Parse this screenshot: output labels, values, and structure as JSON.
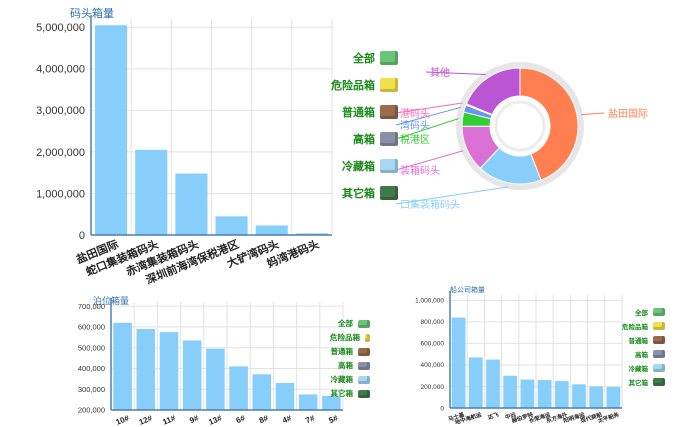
{
  "colors": {
    "bar": "#87cefa",
    "axis": "#4a7fb0",
    "grid": "#e2e2e2",
    "title": "#2f6fb0",
    "legend_text": "#1a8a1a"
  },
  "legend_items": [
    {
      "label": "全部",
      "icon": "all-containers-icon",
      "color": "#6cc47a"
    },
    {
      "label": "危险品箱",
      "icon": "hazardous-container-icon",
      "color": "#f0e04a"
    },
    {
      "label": "普通箱",
      "icon": "standard-container-icon",
      "color": "#9b6b4e"
    },
    {
      "label": "高箱",
      "icon": "high-cube-container-icon",
      "color": "#8a8fa8"
    },
    {
      "label": "冷藏箱",
      "icon": "reefer-container-icon",
      "color": "#a8d8f0"
    },
    {
      "label": "其它箱",
      "icon": "other-container-icon",
      "color": "#3f7a4a"
    }
  ],
  "chart_data": [
    {
      "type": "bar",
      "title": "码头箱量",
      "categories": [
        "盐田国际",
        "蛇口集装箱码头",
        "赤湾集装箱码头",
        "深圳前海湾保税港区",
        "大铲湾码头",
        "妈湾港码头"
      ],
      "values": [
        5050000,
        2050000,
        1480000,
        450000,
        230000,
        40000
      ],
      "ylim": [
        0,
        5200000
      ],
      "yticks": [
        0,
        1000000,
        2000000,
        3000000,
        4000000,
        5000000
      ],
      "ytick_labels": [
        "0",
        "1,000,000",
        "2,000,000",
        "3,000,000",
        "4,000,000",
        "5,000,000"
      ]
    },
    {
      "type": "pie",
      "style": "donut",
      "slices": [
        {
          "label": "盐田国际",
          "value": 5050000,
          "color": "#ff7f50"
        },
        {
          "label": "蛇口集装箱码头",
          "value": 2050000,
          "color": "#87cefa"
        },
        {
          "label": "赤湾集装箱码头",
          "value": 1480000,
          "color": "#da70d6"
        },
        {
          "label": "深圳前海湾保税港区",
          "value": 450000,
          "color": "#32cd32"
        },
        {
          "label": "大铲湾码头",
          "value": 230000,
          "color": "#6495ed"
        },
        {
          "label": "妈湾港码头",
          "value": 40000,
          "color": "#ff69b4"
        },
        {
          "label": "其他",
          "value": 2150000,
          "color": "#ba55d3"
        }
      ],
      "visible_labels": [
        "盐田国际",
        "口集装箱码头",
        "装箱码头",
        "税港区",
        "湾码头",
        "港码头",
        "其他"
      ]
    },
    {
      "type": "bar",
      "title": "泊位箱量",
      "categories": [
        "10#",
        "12#",
        "11#",
        "9#",
        "13#",
        "6#",
        "8#",
        "4#",
        "7#",
        "5#"
      ],
      "values": [
        620000,
        590000,
        575000,
        535000,
        495000,
        410000,
        372000,
        330000,
        275000,
        268000
      ],
      "ylim": [
        200000,
        720000
      ],
      "yticks": [
        200000,
        300000,
        400000,
        500000,
        600000,
        700000
      ],
      "ytick_labels": [
        "200,000",
        "300,000",
        "400,000",
        "500,000",
        "600,000",
        "700,000"
      ]
    },
    {
      "type": "bar",
      "title": "船公司箱量",
      "categories": [
        "马士基",
        "地中海航运",
        "达飞",
        "中远",
        "赫伯罗特",
        "长荣海运",
        "东方海外",
        "阳明海运",
        "现代商船",
        "太平船务"
      ],
      "values": [
        840000,
        470000,
        450000,
        300000,
        265000,
        260000,
        250000,
        220000,
        200000,
        195000
      ],
      "ylim": [
        0,
        1050000
      ],
      "yticks": [
        0,
        200000,
        400000,
        600000,
        800000,
        1000000
      ],
      "ytick_labels": [
        "0",
        "200,000",
        "400,000",
        "600,000",
        "800,000",
        "1,000,000"
      ]
    }
  ]
}
